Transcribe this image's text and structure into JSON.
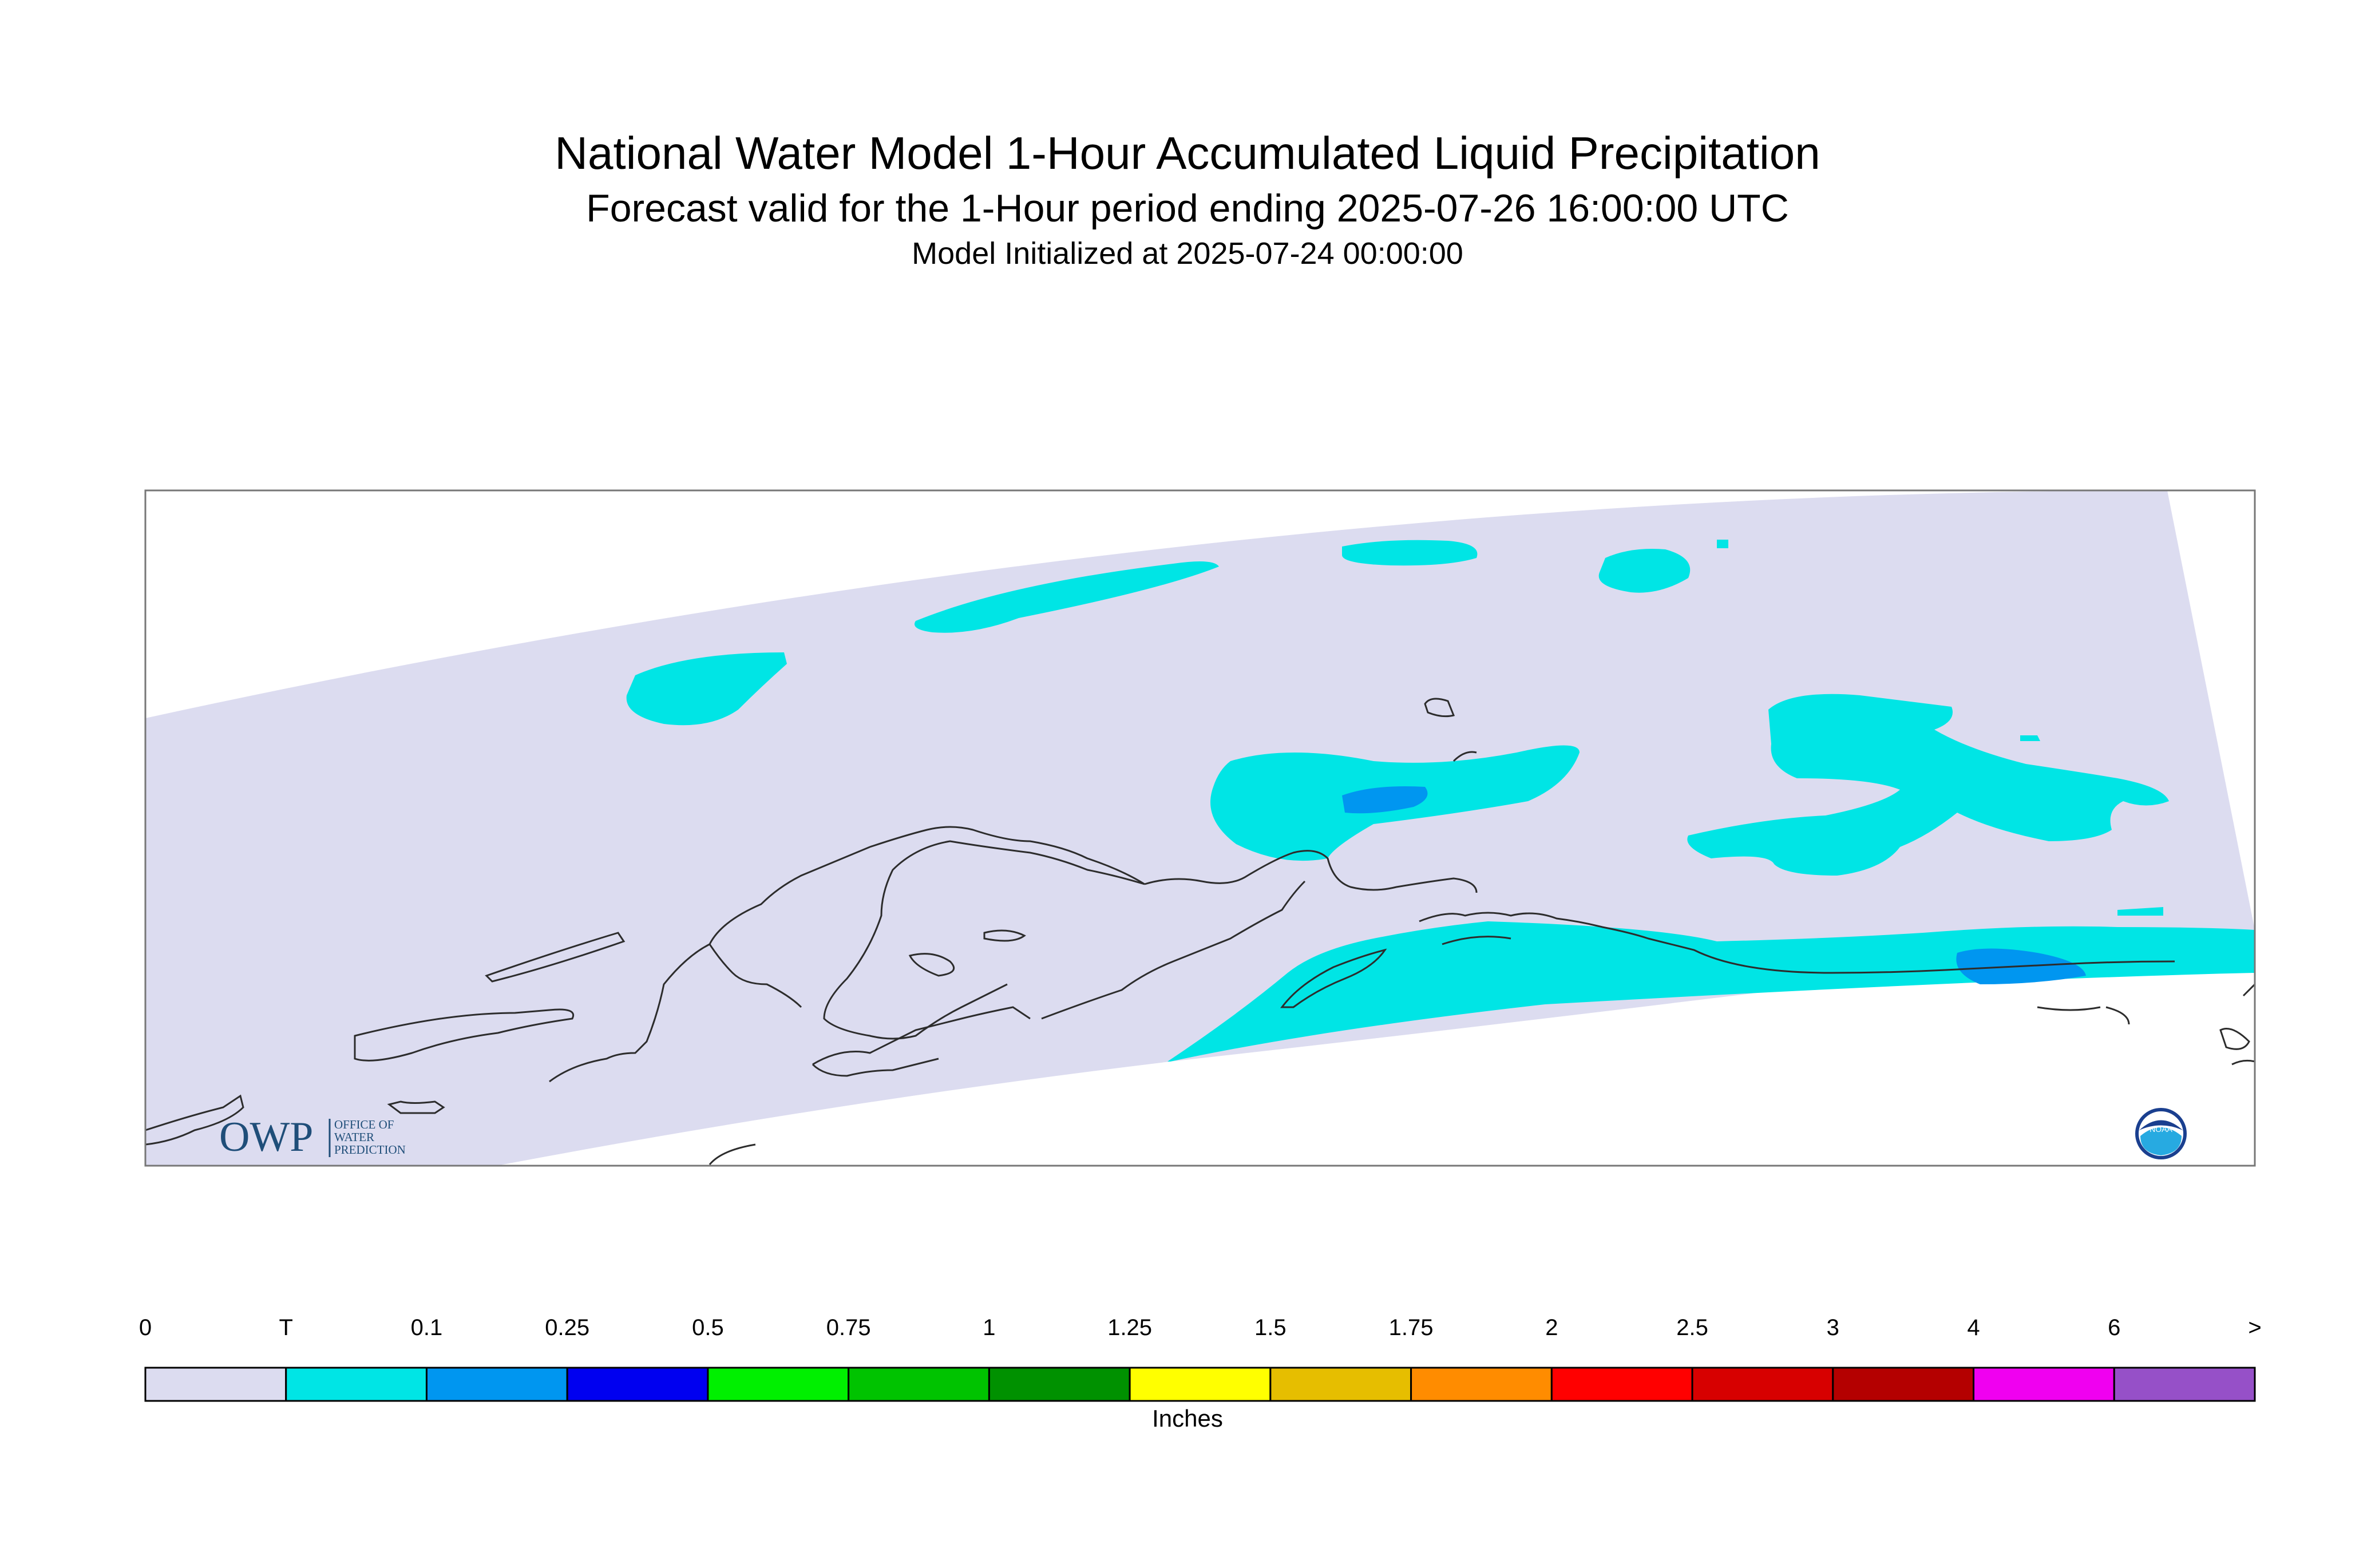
{
  "header": {
    "title": "National Water Model 1-Hour Accumulated Liquid Precipitation",
    "subtitle": "Forecast valid for the 1-Hour period ending 2025-07-26 16:00:00 UTC",
    "init": "Model Initialized at 2025-07-24 00:00:00"
  },
  "logos": {
    "owp_letters": "OWP",
    "owp_line1": "OFFICE OF",
    "owp_line2": "WATER",
    "owp_line3": "PREDICTION",
    "noaa": "NOAA"
  },
  "legend": {
    "units": "Inches",
    "labels": [
      "0",
      "T",
      "0.1",
      "0.25",
      "0.5",
      "0.75",
      "1",
      "1.25",
      "1.5",
      "1.75",
      "2",
      "2.5",
      "3",
      "4",
      "6",
      ">"
    ],
    "colors": [
      "#dcdcf0",
      "#00e5e5",
      "#0096f0",
      "#0000f0",
      "#00f000",
      "#00c300",
      "#009100",
      "#ffff00",
      "#e6be00",
      "#ff8c00",
      "#ff0000",
      "#d70000",
      "#b40000",
      "#f000f0",
      "#9650c8"
    ]
  },
  "map": {
    "background_color": "#dcdcf0",
    "trace_color": "#00e5e5",
    "light_color": "#0096f0"
  }
}
